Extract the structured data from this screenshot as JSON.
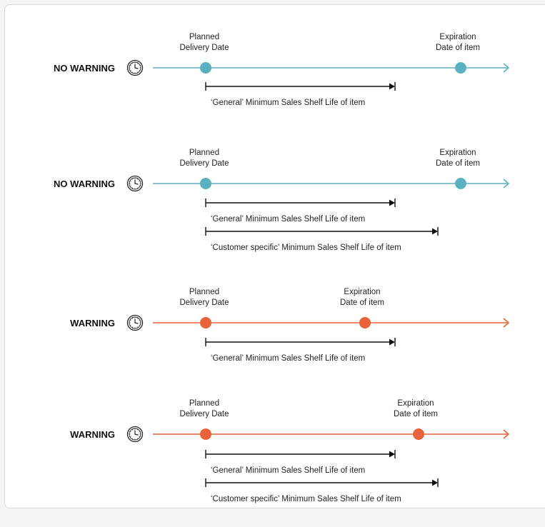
{
  "colors": {
    "ok": "#5ab1c1",
    "warn": "#e8623a",
    "bracket": "#111111"
  },
  "icon": "clock-icon",
  "scenarios": [
    {
      "status": "NO WARNING",
      "severity": "ok",
      "planned_label": [
        "Planned",
        "Delivery Date"
      ],
      "expiration_label": [
        "Expiration",
        "Date of item"
      ],
      "brackets": [
        "‘General’ Minimum Sales Shelf Life of item"
      ]
    },
    {
      "status": "NO WARNING",
      "severity": "ok",
      "planned_label": [
        "Planned",
        "Delivery Date"
      ],
      "expiration_label": [
        "Expiration",
        "Date of item"
      ],
      "brackets": [
        "‘General’ Minimum Sales Shelf Life of item",
        "‘Customer specific’ Minimum Sales Shelf Life of item"
      ]
    },
    {
      "status": "WARNING",
      "severity": "warn",
      "planned_label": [
        "Planned",
        "Delivery Date"
      ],
      "expiration_label": [
        "Expiration",
        "Date of item"
      ],
      "brackets": [
        "‘General’ Minimum Sales Shelf Life of item"
      ]
    },
    {
      "status": "WARNING",
      "severity": "warn",
      "planned_label": [
        "Planned",
        "Delivery Date"
      ],
      "expiration_label": [
        "Expiration",
        "Date of item"
      ],
      "brackets": [
        "‘General’ Minimum Sales Shelf Life of item",
        "‘Customer specific’ Minimum Sales Shelf Life of item"
      ]
    }
  ]
}
